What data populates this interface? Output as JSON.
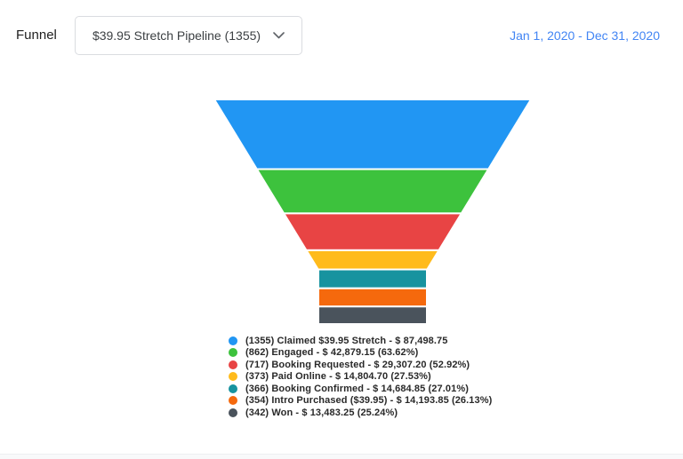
{
  "header": {
    "title": "Funnel",
    "pipeline_selector": {
      "value": "$39.95 Stretch Pipeline (1355)"
    },
    "date_range": "Jan 1, 2020 - Dec 31, 2020",
    "date_range_color": "#4285f4"
  },
  "legend": {
    "items": [
      "(1355) Claimed $39.95 Stretch - $ 87,498.75",
      "(862) Engaged - $ 42,879.15 (63.62%)",
      "(717) Booking Requested - $ 29,307.20 (52.92%)",
      "(373) Paid Online - $ 14,804.70 (27.53%)",
      "(366) Booking Confirmed - $ 14,684.85 (27.01%)",
      "(354) Intro Purchased ($39.95) - $ 14,193.85 (26.13%)",
      "(342) Won - $ 13,483.25 (25.24%)"
    ]
  },
  "chart_data": {
    "type": "funnel",
    "title": "$39.95 Stretch Pipeline (1355)",
    "date_range": "Jan 1, 2020 - Dec 31, 2020",
    "total_count": 1355,
    "stages": [
      {
        "label": "Claimed $39.95 Stretch",
        "count": 1355,
        "amount": "$ 87,498.75",
        "percent": null,
        "color": "#2196f3"
      },
      {
        "label": "Engaged",
        "count": 862,
        "amount": "$ 42,879.15",
        "percent": "63.62%",
        "color": "#3dc23d"
      },
      {
        "label": "Booking Requested",
        "count": 717,
        "amount": "$ 29,307.20",
        "percent": "52.92%",
        "color": "#e84444"
      },
      {
        "label": "Paid Online",
        "count": 373,
        "amount": "$ 14,804.70",
        "percent": "27.53%",
        "color": "#ffbb1c"
      },
      {
        "label": "Booking Confirmed",
        "count": 366,
        "amount": "$ 14,684.85",
        "percent": "27.01%",
        "color": "#17939f"
      },
      {
        "label": "Intro Purchased ($39.95)",
        "count": 354,
        "amount": "$ 14,193.85",
        "percent": "26.13%",
        "color": "#f5690d"
      },
      {
        "label": "Won",
        "count": 342,
        "amount": "$ 13,483.25",
        "percent": "25.24%",
        "color": "#4a535c"
      }
    ],
    "legend_position": "bottom-center",
    "segment_gap_color": "#ffffff"
  }
}
